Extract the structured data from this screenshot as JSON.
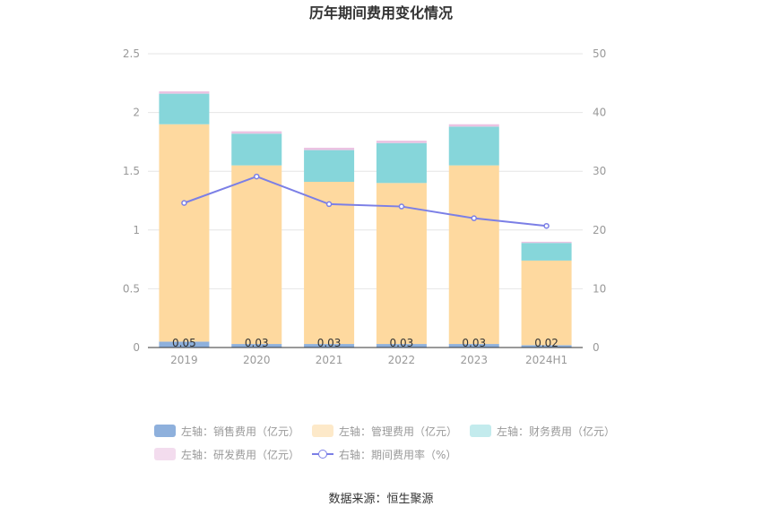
{
  "chart_data": {
    "type": "bar",
    "title": "历年期间费用变化情况",
    "categories": [
      "2019",
      "2020",
      "2021",
      "2022",
      "2023",
      "2024H1"
    ],
    "y_left": {
      "min": 0,
      "max": 2.5,
      "ticks": [
        "0",
        "0.5",
        "1",
        "1.5",
        "2",
        "2.5"
      ]
    },
    "y_right": {
      "min": 0,
      "max": 50,
      "ticks": [
        "0",
        "10",
        "20",
        "30",
        "40",
        "50"
      ]
    },
    "series": [
      {
        "name": "左轴：销售费用（亿元）",
        "axis": "left",
        "type": "bar",
        "color": "#8eb0dc",
        "values": [
          0.05,
          0.03,
          0.03,
          0.03,
          0.03,
          0.02
        ],
        "labels": [
          "0.05",
          "0.03",
          "0.03",
          "0.03",
          "0.03",
          "0.02"
        ]
      },
      {
        "name": "左轴：管理费用（亿元）",
        "axis": "left",
        "type": "bar",
        "color": "#fed99f",
        "legend_color": "#fde9c9",
        "values": [
          1.85,
          1.52,
          1.38,
          1.37,
          1.52,
          0.72
        ]
      },
      {
        "name": "左轴：财务费用（亿元）",
        "axis": "left",
        "type": "bar",
        "color": "#86d6da",
        "legend_color": "#c3ebed",
        "values": [
          0.26,
          0.27,
          0.27,
          0.34,
          0.33,
          0.15
        ]
      },
      {
        "name": "左轴：研发费用（亿元）",
        "axis": "left",
        "type": "bar",
        "color": "#ebc3e2",
        "legend_color": "#f3dcee",
        "values": [
          0.02,
          0.02,
          0.02,
          0.02,
          0.02,
          0.01
        ]
      },
      {
        "name": "右轴：期间费用率（%）",
        "axis": "right",
        "type": "line",
        "color": "#7b7fe6",
        "values": [
          24.6,
          29.1,
          24.4,
          24.0,
          22.0,
          20.7
        ]
      }
    ]
  },
  "footer": "数据来源：恒生聚源"
}
